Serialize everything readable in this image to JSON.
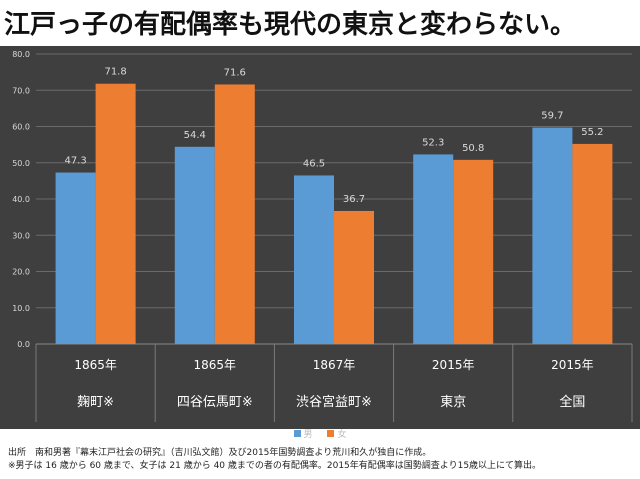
{
  "title": "江戸っ子の有配偶率も現代の東京と変わらない。",
  "colors": {
    "male": "#5b9bd5",
    "female": "#ed7d31",
    "background": "#3f3f3f",
    "grid": "#6a6a6a",
    "text": "#d9d9d9"
  },
  "source_line": "出所　南和男著『幕末江戸社会の研究』（吉川弘文館）及び2015年国勢調査より荒川和久が独自に作成。",
  "note_line": "※男子は 16 歳から 60 歳まで、女子は 21 歳から 40 歳までの者の有配偶率。2015年有配偶率は国勢調査より15歳以上にて算出。",
  "chart_data": {
    "type": "bar",
    "ylim": [
      0,
      80
    ],
    "yticks": [
      "0.0",
      "10.0",
      "20.0",
      "30.0",
      "40.0",
      "50.0",
      "60.0",
      "70.0",
      "80.0"
    ],
    "categories": [
      {
        "year": "1865年",
        "place": "麹町※"
      },
      {
        "year": "1865年",
        "place": "四谷伝馬町※"
      },
      {
        "year": "1867年",
        "place": "渋谷宮益町※"
      },
      {
        "year": "2015年",
        "place": "東京"
      },
      {
        "year": "2015年",
        "place": "全国"
      }
    ],
    "series": [
      {
        "name": "男",
        "values": [
          47.3,
          54.4,
          46.5,
          52.3,
          59.7
        ],
        "labels": [
          "47.3",
          "54.4",
          "46.5",
          "52.3",
          "59.7"
        ]
      },
      {
        "name": "女",
        "values": [
          71.8,
          71.6,
          36.7,
          50.8,
          55.2
        ],
        "labels": [
          "71.8",
          "71.6",
          "36.7",
          "50.8",
          "55.2"
        ]
      }
    ],
    "grid": true,
    "legend_position": "bottom"
  }
}
